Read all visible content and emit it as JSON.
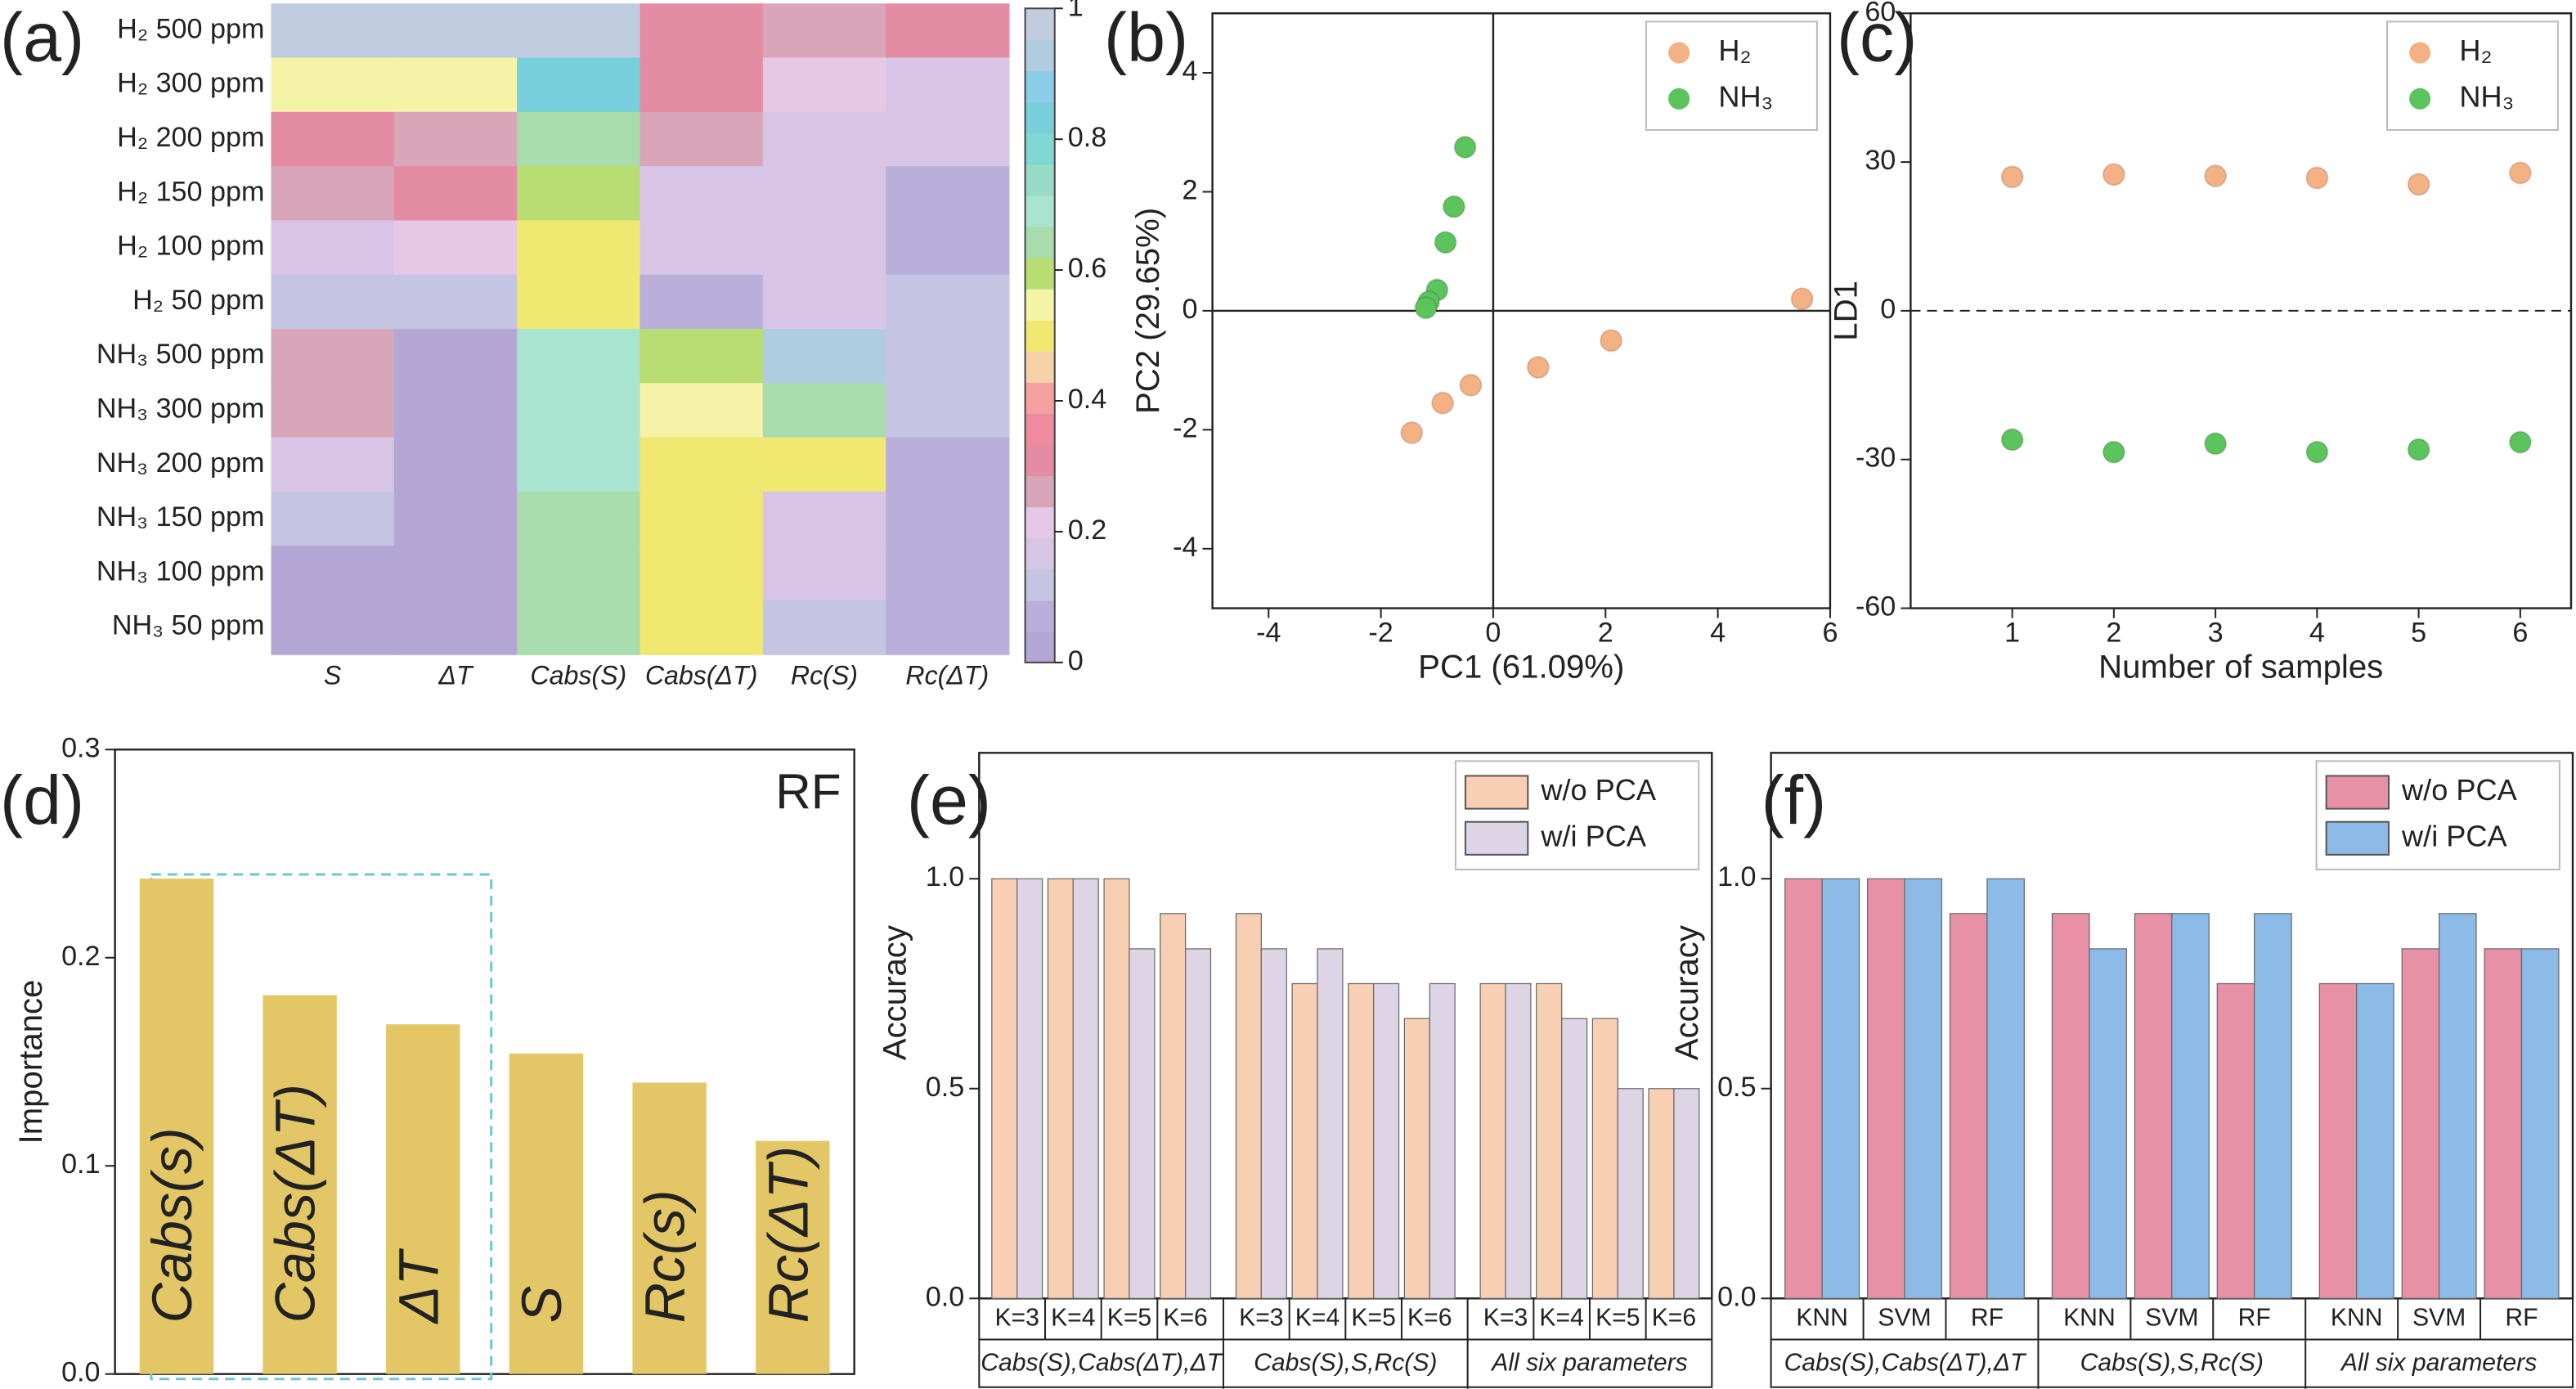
{
  "chart_data": [
    {
      "type": "heatmap",
      "label": "(a)",
      "rows": [
        "H₂ 500 ppm",
        "H₂ 300 ppm",
        "H₂ 200 ppm",
        "H₂ 150 ppm",
        "H₂ 100 ppm",
        "H₂ 50 ppm",
        "NH₃ 500 ppm",
        "NH₃ 300 ppm",
        "NH₃ 200 ppm",
        "NH₃ 150 ppm",
        "NH₃ 100 ppm",
        "NH₃ 50 ppm"
      ],
      "columns": [
        "S",
        "ΔT",
        "Cabs(S)",
        "Cabs(ΔT)",
        "Rc(S)",
        "Rc(ΔT)"
      ],
      "values": [
        [
          1.0,
          1.0,
          1.0,
          0.3,
          0.25,
          0.3
        ],
        [
          0.55,
          0.55,
          0.85,
          0.3,
          0.18,
          0.15
        ],
        [
          0.32,
          0.27,
          0.65,
          0.25,
          0.15,
          0.15
        ],
        [
          0.25,
          0.3,
          0.6,
          0.15,
          0.15,
          0.05
        ],
        [
          0.13,
          0.18,
          0.48,
          0.13,
          0.15,
          0.05
        ],
        [
          0.1,
          0.1,
          0.52,
          0.05,
          0.13,
          0.08
        ],
        [
          0.25,
          0,
          0.7,
          0.6,
          0.95,
          0.1
        ],
        [
          0.25,
          0,
          0.7,
          0.55,
          0.65,
          0.1
        ],
        [
          0.15,
          0,
          0.7,
          0.5,
          0.5,
          0.05
        ],
        [
          0.1,
          0,
          0.65,
          0.5,
          0.15,
          0.05
        ],
        [
          0,
          0,
          0.65,
          0.5,
          0.13,
          0.05
        ],
        [
          0,
          0,
          0.65,
          0.5,
          0.1,
          0.05
        ]
      ],
      "colorscale": [
        "#b4a7d6",
        "#baafdb",
        "#c5c4e2",
        "#d8c5e5",
        "#e6c8e6",
        "#d9a5b8",
        "#e48ca4",
        "#f08aa0",
        "#f4a0a0",
        "#f7d1a8",
        "#f0e870",
        "#f5f3a8",
        "#b8dd72",
        "#a8dcac",
        "#a8e4d0",
        "#98dcc8",
        "#80d8d4",
        "#78d0dc",
        "#8ccce8",
        "#b0cce0",
        "#c0cce0"
      ],
      "zlim": [
        0,
        1
      ],
      "zticks": [
        0,
        0.2,
        0.4,
        0.6,
        0.8,
        1
      ]
    },
    {
      "type": "scatter",
      "label": "(b)",
      "xlabel": "PC1 (61.09%)",
      "ylabel": "PC2 (29.65%)",
      "xlim": [
        -5,
        6
      ],
      "ylim": [
        -5,
        5
      ],
      "xticks": [
        -4,
        -2,
        0,
        2,
        4,
        6
      ],
      "yticks": [
        -4,
        -2,
        0,
        2,
        4
      ],
      "zero_lines": true,
      "legend": "upper right",
      "series": [
        {
          "name": "H₂",
          "color": "#f4b183",
          "x": [
            5.5,
            2.1,
            0.8,
            -0.4,
            -0.9,
            -1.45
          ],
          "y": [
            0.2,
            -0.5,
            -0.95,
            -1.25,
            -1.55,
            -2.05
          ]
        },
        {
          "name": "NH₃",
          "color": "#5cc45c",
          "x": [
            -0.5,
            -0.7,
            -0.85,
            -1.0,
            -1.15,
            -1.2
          ],
          "y": [
            2.75,
            1.75,
            1.15,
            0.35,
            0.15,
            0.05
          ]
        }
      ]
    },
    {
      "type": "scatter",
      "label": "(c)",
      "xlabel": "Number of samples",
      "ylabel": "LD1",
      "xlim": [
        0,
        6.5
      ],
      "ylim": [
        -60,
        60
      ],
      "xticks": [
        1,
        2,
        3,
        4,
        5,
        6
      ],
      "yticks": [
        -60,
        -30,
        0,
        30,
        60
      ],
      "dashed_zero_line": true,
      "legend": "upper right",
      "series": [
        {
          "name": "H₂",
          "color": "#f4b183",
          "x": [
            1,
            2,
            3,
            4,
            5,
            6
          ],
          "y": [
            27,
            27.5,
            27.2,
            26.8,
            25.5,
            27.8
          ]
        },
        {
          "name": "NH₃",
          "color": "#5cc45c",
          "x": [
            1,
            2,
            3,
            4,
            5,
            6
          ],
          "y": [
            -26,
            -28.5,
            -26.8,
            -28.5,
            -28,
            -26.5
          ]
        }
      ]
    },
    {
      "type": "bar",
      "label": "(d)",
      "annotation": "RF",
      "ylabel": "Importance",
      "categories": [
        "Cabs(s)",
        "Cabs(ΔT)",
        "ΔT",
        "S",
        "Rc(s)",
        "Rc(ΔT)"
      ],
      "values": [
        0.238,
        0.182,
        0.168,
        0.154,
        0.14,
        0.112
      ],
      "color": "#e3c766",
      "ylim": [
        0,
        0.3
      ],
      "yticks": [
        {
          "value": 0,
          "label": "0.0"
        },
        0.1,
        0.2,
        0.3
      ]
    },
    {
      "type": "grouped_bar",
      "label": "(e)",
      "ylabel": "Accuracy",
      "legend": "upper right",
      "categories": [
        "K=3",
        "K=4",
        "K=5",
        "K=6",
        "K=3",
        "K=4",
        "K=5",
        "K=6",
        "K=3",
        "K=4",
        "K=5",
        "K=6"
      ],
      "groups": [
        "Cabs(S),Cabs(ΔT),ΔT",
        "Cabs(S),S,Rc(S)",
        "All six parameters"
      ],
      "ylim": [
        0,
        1.3
      ],
      "yticks": [
        {
          "value": 0,
          "label": "0.0"
        },
        0.5,
        {
          "value": 1,
          "label": "1.0"
        }
      ],
      "series": [
        {
          "name": "w/o PCA",
          "color": "#f8cfb2",
          "values": [
            1,
            1,
            1,
            0.917,
            0.917,
            0.75,
            0.75,
            0.667,
            0.75,
            0.75,
            0.667,
            0.5
          ]
        },
        {
          "name": "w/i PCA",
          "color": "#ddd4e6",
          "values": [
            1,
            1,
            0.833,
            0.833,
            0.833,
            0.833,
            0.75,
            0.75,
            0.75,
            0.667,
            0.5,
            0.5
          ]
        }
      ]
    },
    {
      "type": "grouped_bar",
      "label": "(f)",
      "ylabel": "Accuracy",
      "legend": "upper right",
      "categories": [
        "KNN",
        "SVM",
        "RF",
        "KNN",
        "SVM",
        "RF",
        "KNN",
        "SVM",
        "RF"
      ],
      "groups": [
        "Cabs(S),Cabs(ΔT),ΔT",
        "Cabs(S),S,Rc(S)",
        "All six parameters"
      ],
      "ylim": [
        0,
        1.3
      ],
      "yticks": [
        {
          "value": 0,
          "label": "0.0"
        },
        0.5,
        {
          "value": 1,
          "label": "1.0"
        }
      ],
      "series": [
        {
          "name": "w/o PCA",
          "color": "#e891a6",
          "values": [
            1,
            1,
            0.917,
            0.917,
            0.917,
            0.75,
            0.75,
            0.833,
            0.833
          ]
        },
        {
          "name": "w/i PCA",
          "color": "#8cbbe8",
          "values": [
            1,
            1,
            1,
            0.833,
            0.917,
            0.917,
            0.75,
            0.917,
            0.833
          ]
        }
      ]
    }
  ]
}
